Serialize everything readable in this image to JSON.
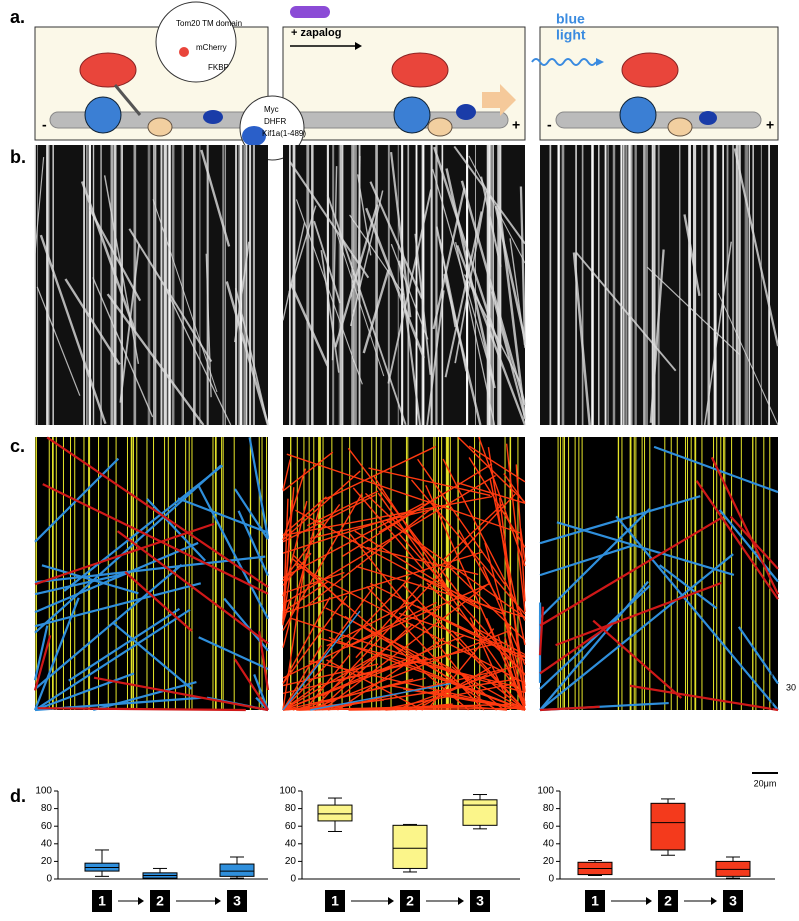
{
  "figure": {
    "panel_labels": [
      "a.",
      "b.",
      "c.",
      "d."
    ],
    "bubble_1": [
      "Tom20 TM domain",
      "mCherry",
      "FKBP"
    ],
    "bubble_2": [
      "Myc",
      "DHFR",
      "Kif1a(1-489)"
    ],
    "zapalog": "+ zapalog",
    "blue_light": [
      "blue",
      "light"
    ],
    "minus_ends": [
      "-",
      "-"
    ],
    "plus_ends": [
      "+",
      "+"
    ],
    "scale_time": "30",
    "scale_distance": "20μm"
  },
  "chart_data": [
    {
      "type": "box",
      "color": "#2f8fdc",
      "categories": [
        "1",
        "2",
        "3"
      ],
      "ylim": [
        0,
        100
      ],
      "yticks": [
        0,
        20,
        40,
        60,
        80,
        100
      ],
      "boxes": [
        {
          "min": 3,
          "q1": 9,
          "median": 13,
          "q3": 18,
          "max": 33
        },
        {
          "min": 0,
          "q1": 1,
          "median": 4,
          "q3": 7,
          "max": 12
        },
        {
          "min": 1,
          "q1": 3,
          "median": 9,
          "q3": 17,
          "max": 25
        }
      ]
    },
    {
      "type": "box",
      "color": "#fbf58a",
      "categories": [
        "1",
        "2",
        "3"
      ],
      "ylim": [
        0,
        100
      ],
      "yticks": [
        0,
        20,
        40,
        60,
        80,
        100
      ],
      "boxes": [
        {
          "min": 54,
          "q1": 66,
          "median": 74,
          "q3": 84,
          "max": 92
        },
        {
          "min": 8,
          "q1": 12,
          "median": 35,
          "q3": 61,
          "max": 62
        },
        {
          "min": 57,
          "q1": 61,
          "median": 84,
          "q3": 90,
          "max": 96
        }
      ]
    },
    {
      "type": "box",
      "color": "#f43a1c",
      "categories": [
        "1",
        "2",
        "3"
      ],
      "ylim": [
        0,
        100
      ],
      "yticks": [
        0,
        20,
        40,
        60,
        80,
        100
      ],
      "boxes": [
        {
          "min": 4,
          "q1": 5,
          "median": 12,
          "q3": 19,
          "max": 21
        },
        {
          "min": 27,
          "q1": 33,
          "median": 64,
          "q3": 86,
          "max": 91
        },
        {
          "min": 1,
          "q1": 3,
          "median": 11,
          "q3": 20,
          "max": 25
        }
      ]
    }
  ]
}
